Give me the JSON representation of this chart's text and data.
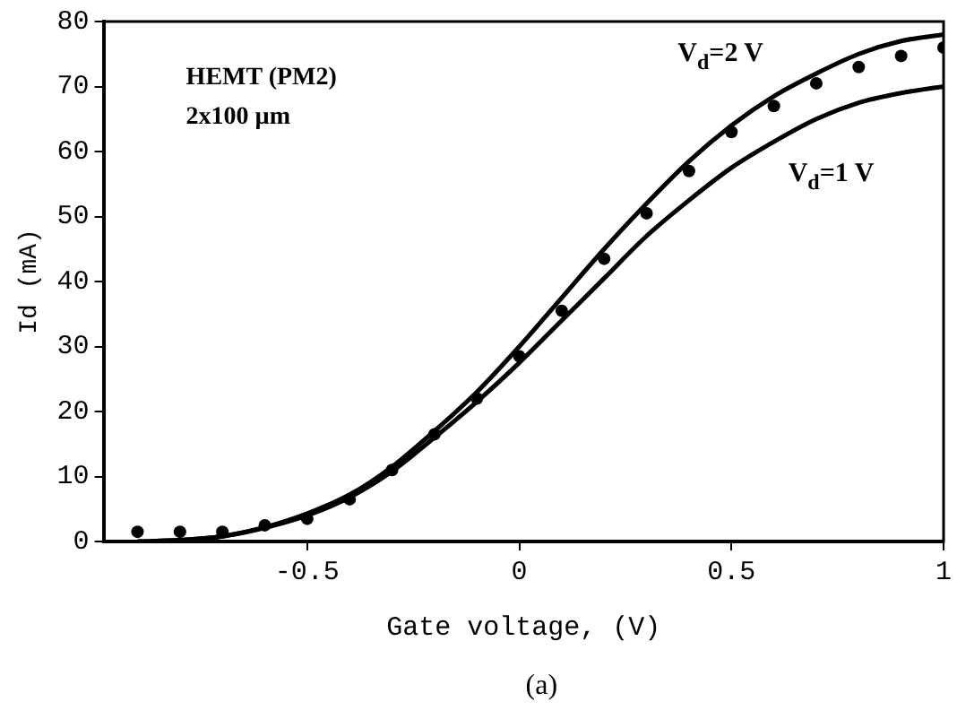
{
  "chart_data": {
    "type": "line",
    "xlabel": "Gate voltage, (V)",
    "ylabel": "Id (mA)",
    "xlim": [
      -0.98,
      1
    ],
    "xticks": [
      -0.5,
      0,
      0.5,
      1
    ],
    "ylim": [
      0,
      80
    ],
    "yticks": [
      0,
      10,
      20,
      30,
      40,
      50,
      60,
      70,
      80
    ],
    "grid": false,
    "legend": false,
    "marker": "none",
    "line_style": "solid",
    "x": [
      -0.9,
      -0.8,
      -0.7,
      -0.6,
      -0.5,
      -0.4,
      -0.3,
      -0.2,
      -0.1,
      0,
      0.1,
      0.2,
      0.3,
      0.4,
      0.5,
      0.6,
      0.7,
      0.8,
      0.9,
      1.0
    ],
    "series": [
      {
        "name": "V$_{d}$=2 V",
        "color": "#000000",
        "values": [
          0,
          0.2,
          0.8,
          2.2,
          4.3,
          7.2,
          11.5,
          17,
          23,
          30,
          37.5,
          45,
          52,
          58.5,
          64,
          68.5,
          72,
          75,
          77,
          78
        ]
      },
      {
        "name": "V$_{d}$=1 V",
        "color": "#000000",
        "values": [
          0,
          0.2,
          0.8,
          2.1,
          4,
          6.8,
          10.8,
          16,
          21.5,
          27.5,
          34,
          40.5,
          47,
          52.5,
          57.5,
          61.5,
          65,
          67.5,
          69,
          70
        ]
      },
      {
        "type": "scatter",
        "marker": "circle",
        "color": "#000000",
        "values": [
          1.5,
          1.5,
          1.5,
          2.5,
          3.5,
          6.5,
          11,
          16.5,
          22,
          28.5,
          35.5,
          43.5,
          50.5,
          57,
          63,
          67,
          70.5,
          73,
          74.7,
          76
        ]
      }
    ],
    "annotations": [
      "HEMT (PM2)",
      "2x100 µm",
      "(a)"
    ]
  }
}
